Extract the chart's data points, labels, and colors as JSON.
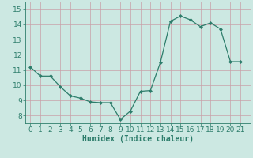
{
  "x": [
    0,
    1,
    2,
    3,
    4,
    5,
    6,
    7,
    8,
    9,
    10,
    11,
    12,
    13,
    14,
    15,
    16,
    17,
    18,
    19,
    20,
    21
  ],
  "y": [
    11.2,
    10.6,
    10.6,
    9.9,
    9.3,
    9.15,
    8.9,
    8.85,
    8.85,
    7.75,
    8.3,
    9.6,
    9.65,
    11.5,
    14.2,
    14.55,
    14.3,
    13.85,
    14.1,
    13.7,
    11.55,
    11.55
  ],
  "xlabel": "Humidex (Indice chaleur)",
  "ylabel": "",
  "xlim": [
    -0.5,
    22.0
  ],
  "ylim": [
    7.5,
    15.5
  ],
  "yticks": [
    8,
    9,
    10,
    11,
    12,
    13,
    14,
    15
  ],
  "xticks": [
    0,
    1,
    2,
    3,
    4,
    5,
    6,
    7,
    8,
    9,
    10,
    11,
    12,
    13,
    14,
    15,
    16,
    17,
    18,
    19,
    20,
    21
  ],
  "line_color": "#2d7d6b",
  "marker_color": "#2d7d6b",
  "bg_color": "#cce8e2",
  "grid_color_major": "#b8d4ce",
  "grid_color_minor": "#d4e8e4",
  "plot_bg": "#cce8e2",
  "fig_bg": "#cce8e2",
  "font_color": "#2d7d6b",
  "xlabel_fontsize": 7,
  "tick_fontsize": 6.5
}
